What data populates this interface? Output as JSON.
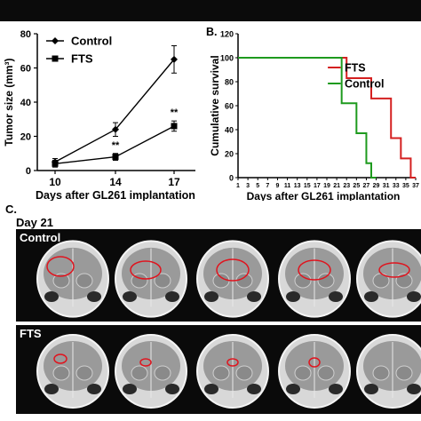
{
  "panel_a": {
    "chart_data": {
      "type": "line",
      "x": [
        10,
        14,
        17
      ],
      "series": [
        {
          "name": "Control",
          "values": [
            5,
            24,
            65
          ],
          "errors": [
            2,
            4,
            8
          ]
        },
        {
          "name": "FTS",
          "values": [
            4,
            8,
            26
          ],
          "errors": [
            2,
            2,
            3
          ]
        }
      ],
      "xlabel": "Days after GL261 implantation",
      "ylabel": "Tumor size (mm³)",
      "ylim": [
        0,
        80
      ],
      "yticks": [
        0,
        20,
        40,
        60,
        80
      ],
      "significance": [
        {
          "x": 14,
          "label": "**"
        },
        {
          "x": 17,
          "label": "**"
        }
      ],
      "legend": "top-left"
    }
  },
  "panel_b": {
    "label": "B.",
    "chart_data": {
      "type": "line",
      "xlabel": "Days after GL261 implantation",
      "ylabel": "Cumulative survival",
      "ylim": [
        0,
        120
      ],
      "yticks": [
        0,
        20,
        40,
        60,
        80,
        100,
        120
      ],
      "xticks": [
        1,
        3,
        5,
        7,
        9,
        11,
        13,
        15,
        17,
        19,
        21,
        23,
        25,
        27,
        29,
        31,
        33,
        35,
        37
      ],
      "xlim": [
        1,
        37
      ],
      "series": [
        {
          "name": "FTS",
          "color": "#d42020",
          "steps": [
            [
              1,
              100
            ],
            [
              23,
              100
            ],
            [
              23,
              83
            ],
            [
              28,
              83
            ],
            [
              28,
              66
            ],
            [
              32,
              66
            ],
            [
              32,
              33
            ],
            [
              34,
              33
            ],
            [
              34,
              16
            ],
            [
              36,
              16
            ],
            [
              36,
              0
            ],
            [
              37,
              0
            ]
          ]
        },
        {
          "name": "Control",
          "color": "#1e9a1e",
          "steps": [
            [
              1,
              100
            ],
            [
              22,
              100
            ],
            [
              22,
              62
            ],
            [
              25,
              62
            ],
            [
              25,
              37
            ],
            [
              27,
              37
            ],
            [
              27,
              12
            ],
            [
              28,
              12
            ],
            [
              28,
              0
            ],
            [
              29,
              0
            ]
          ]
        }
      ],
      "legend": "top-right"
    }
  },
  "panel_c": {
    "label": "C.",
    "day_label": "Day 21",
    "rows": [
      {
        "label": "Control",
        "tumor_color": "#e0141e"
      },
      {
        "label": "FTS",
        "tumor_color": "#e0141e"
      }
    ]
  }
}
